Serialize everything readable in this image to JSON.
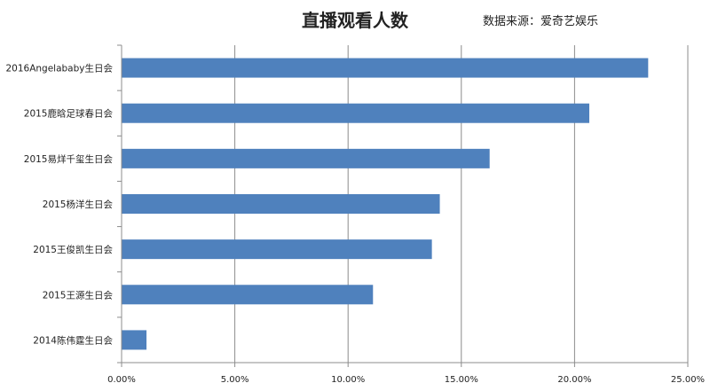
{
  "chart_data": {
    "type": "bar",
    "orientation": "horizontal",
    "title": "直播观看人数",
    "source_note": "数据来源：爱奇艺娱乐",
    "categories": [
      "2016Angelababy生日会",
      "2015鹿晗足球春日会",
      "2015易烊千玺生日会",
      "2015杨洋生日会",
      "2015王俊凯生日会",
      "2015王源生日会",
      "2014陈伟霆生日会"
    ],
    "values": [
      23.25,
      20.65,
      16.25,
      14.05,
      13.7,
      11.1,
      1.1
    ],
    "value_unit": "%",
    "xlim": [
      0,
      25
    ],
    "xticks": [
      0,
      5,
      10,
      15,
      20,
      25
    ],
    "xtick_labels": [
      "0.00%",
      "5.00%",
      "10.00%",
      "15.00%",
      "20.00%",
      "25.00%"
    ],
    "grid": "vertical",
    "legend": "none",
    "bar_color": "#4F81BD"
  }
}
